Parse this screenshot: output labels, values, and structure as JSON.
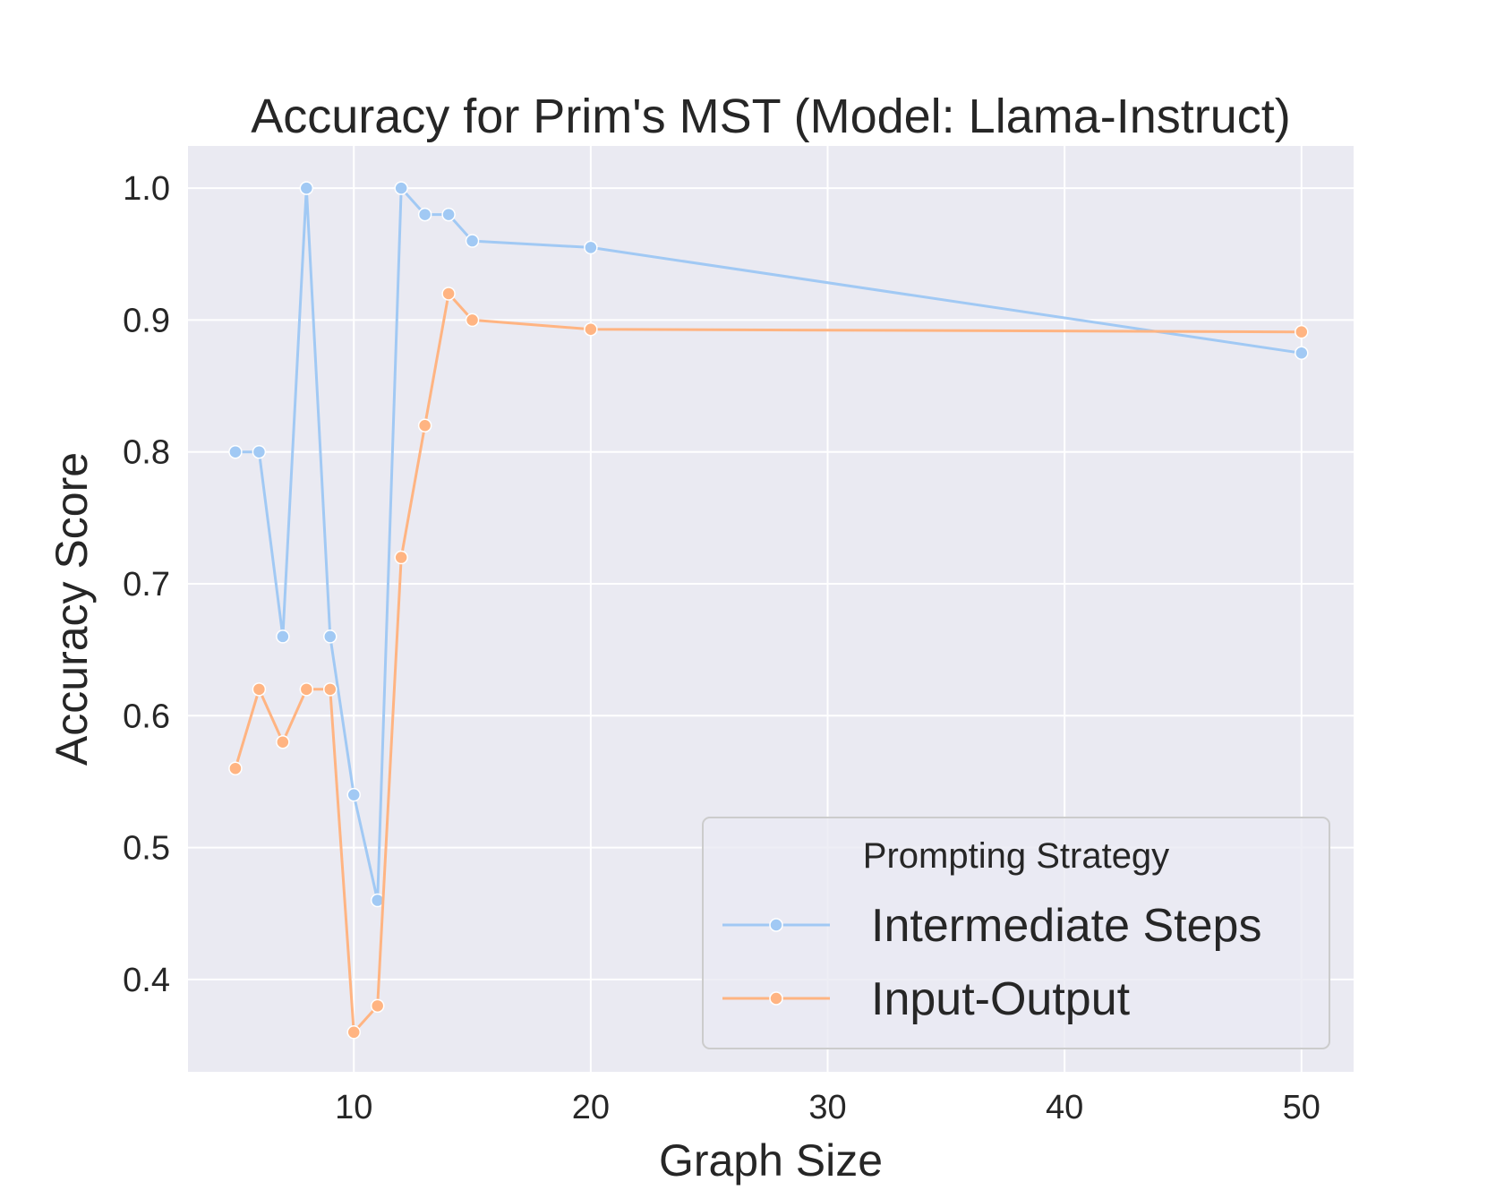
{
  "chart_data": {
    "type": "line",
    "title": "Accuracy for Prim's MST (Model: Llama-Instruct)",
    "xlabel": "Graph Size",
    "ylabel": "Accuracy Score",
    "xlim": [
      3,
      52.2
    ],
    "ylim": [
      0.33,
      1.032
    ],
    "xticks": [
      10,
      20,
      30,
      40,
      50
    ],
    "yticks": [
      0.4,
      0.5,
      0.6,
      0.7,
      0.8,
      0.9,
      1.0
    ],
    "grid": true,
    "legend": {
      "title": "Prompting Strategy",
      "position": "lower-right"
    },
    "series": [
      {
        "name": "Intermediate Steps",
        "color": "#a1c9f4",
        "x": [
          5,
          6,
          7,
          8,
          9,
          10,
          11,
          12,
          13,
          14,
          15,
          20,
          50
        ],
        "y": [
          0.8,
          0.8,
          0.66,
          1.0,
          0.66,
          0.54,
          0.46,
          1.0,
          0.98,
          0.98,
          0.96,
          0.955,
          0.875
        ]
      },
      {
        "name": "Input-Output",
        "color": "#ffb482",
        "x": [
          5,
          6,
          7,
          8,
          9,
          10,
          11,
          12,
          13,
          14,
          15,
          20,
          50
        ],
        "y": [
          0.56,
          0.62,
          0.58,
          0.62,
          0.62,
          0.36,
          0.38,
          0.72,
          0.82,
          0.92,
          0.9,
          0.893,
          0.891
        ]
      }
    ]
  }
}
